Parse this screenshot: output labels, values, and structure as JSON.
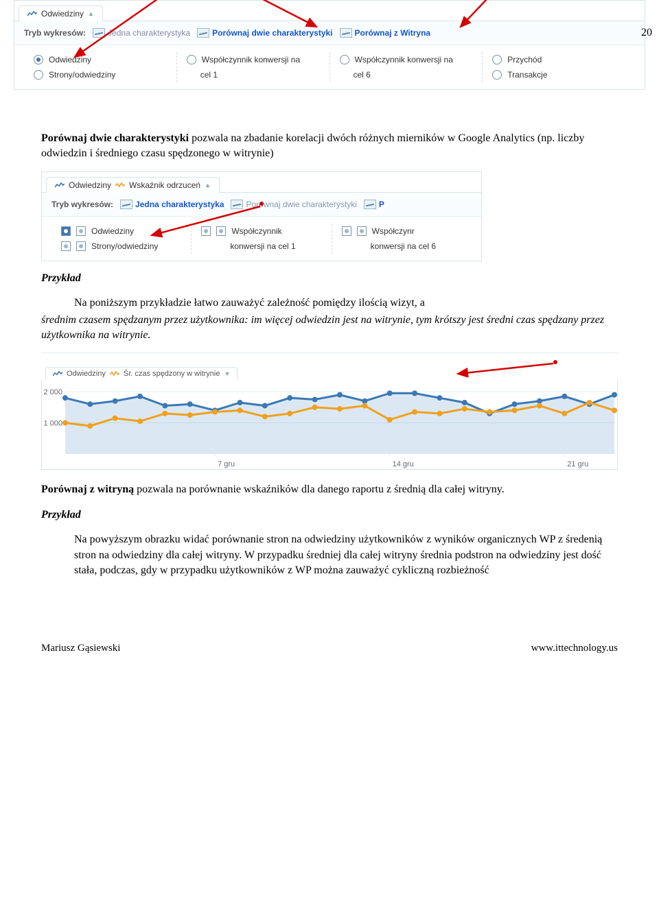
{
  "page_number": "20",
  "panel1": {
    "tab_title": "Odwiedziny",
    "mode_label": "Tryb wykresów:",
    "modes": [
      {
        "label": "Jedna charakterystyka",
        "active": false
      },
      {
        "label": "Porównaj dwie charakterystyki",
        "active": true
      },
      {
        "label": "Porównaj z Witryna",
        "active": true
      }
    ],
    "cols": [
      [
        {
          "label": "Odwiedziny",
          "type": "radio",
          "sel": true
        },
        {
          "label": "Strony/odwiedziny",
          "type": "radio",
          "sel": false
        }
      ],
      [
        {
          "label": "Współczynnik konwersji na",
          "type": "radio",
          "sel": false
        },
        {
          "label": "cel 1",
          "type": "text"
        }
      ],
      [
        {
          "label": "Współczynnik konwersji na",
          "type": "radio",
          "sel": false
        },
        {
          "label": "cel 6",
          "type": "text"
        }
      ],
      [
        {
          "label": "Przychód",
          "type": "radio",
          "sel": false
        },
        {
          "label": "Transakcje",
          "type": "radio",
          "sel": false
        }
      ]
    ],
    "annotation_arrow_color": "#d40000",
    "annotation_dot_color": "#d40000"
  },
  "para1": {
    "lead": "Porównaj dwie charakterystyki",
    "rest": " pozwala na zbadanie korelacji dwóch różnych mierników w Google Analytics (np. liczby odwiedzin i średniego czasu spędzonego w witrynie)"
  },
  "panel2": {
    "tab_title_1": "Odwiedziny",
    "tab_title_2": "Wskaźnik odrzuceń",
    "mode_label": "Tryb wykresów:",
    "modes": [
      {
        "label": "Jedna charakterystyka"
      },
      {
        "label": "Porównaj dwie charakterystyki"
      },
      {
        "label": "P"
      }
    ],
    "cols": [
      [
        {
          "label": "Odwiedziny",
          "sel": true
        },
        {
          "label": "Strony/odwiedziny",
          "sel": false
        }
      ],
      [
        {
          "label": "Współczynnik",
          "sel": false
        },
        {
          "label": "konwersji na cel 1",
          "type": "text"
        }
      ],
      [
        {
          "label": "Współczynr",
          "sel": false
        },
        {
          "label": "konwersji na cel 6",
          "type": "text"
        }
      ]
    ],
    "annotation_arrow_color": "#d40000"
  },
  "example_label": "Przykład",
  "para2": "Na poniższym przykładzie łatwo zauważyć zależność pomiędzy ilością wizyt, a średnim czasem spędzanym przez użytkownika: im więcej odwiedzin jest na witrynie, tym krótszy jest średni czas spędzany przez użytkownika na witrynie.",
  "chart": {
    "tab_series1": "Odwiedziny",
    "tab_series2": "Śr. czas spędzony w witrynie",
    "colors": {
      "series1": "#3b78b5",
      "series2": "#f0a01e",
      "series1_fill": "rgba(93,151,201,0.22)",
      "bg": "#ffffff",
      "grid": "#e6eef3"
    },
    "y_ticks": [
      "2 000",
      "1 000"
    ],
    "x_ticks": [
      "7 gru",
      "14 gru",
      "21 gru"
    ],
    "x": [
      0,
      1,
      2,
      3,
      4,
      5,
      6,
      7,
      8,
      9,
      10,
      11,
      12,
      13,
      14,
      15,
      16,
      17,
      18,
      19,
      20,
      21,
      22
    ],
    "series1": [
      1800,
      1600,
      1700,
      1850,
      1550,
      1600,
      1400,
      1650,
      1550,
      1800,
      1750,
      1900,
      1700,
      1950,
      1950,
      1800,
      1650,
      1300,
      1600,
      1700,
      1850,
      1600,
      1900
    ],
    "series2": [
      1000,
      900,
      1150,
      1050,
      1300,
      1250,
      1350,
      1400,
      1200,
      1300,
      1500,
      1450,
      1550,
      1100,
      1350,
      1300,
      1450,
      1350,
      1400,
      1550,
      1300,
      1650,
      1400
    ],
    "ylim": [
      0,
      2200
    ],
    "annotation_arrow_color": "#d40000"
  },
  "para3": {
    "lead": "Porównaj z witryną",
    "rest": " pozwala na porównanie wskaźników dla danego raportu z średnią dla całej witryny."
  },
  "para4": "Na powyższym obrazku widać porównanie stron na odwiedziny użytkowników z wyników organicznych WP z średenią stron na odwiedziny dla całej witryny. W przypadku średniej dla całej witryny średnia podstron na odwiedziny jest dość stała, podczas, gdy w przypadku użytkowników z WP można zauważyć cykliczną rozbieżność",
  "footer": {
    "left": "Mariusz Gąsiewski",
    "right": "www.ittechnology.us"
  }
}
